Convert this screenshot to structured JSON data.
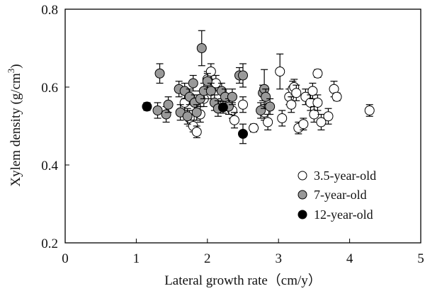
{
  "chart_data": {
    "type": "scatter",
    "title": "",
    "xlabel": "Lateral growth rate（cm/y）",
    "ylabel": "Xylem density (g/cm",
    "ylabel_superscript": "3",
    "ylabel_suffix": ")",
    "xlim": [
      0,
      5
    ],
    "ylim": [
      0.2,
      0.8
    ],
    "x_ticks": [
      0,
      1,
      2,
      3,
      4,
      5
    ],
    "y_ticks": [
      0.2,
      0.4,
      0.6,
      0.8
    ],
    "x_tick_labels": [
      "0",
      "1",
      "2",
      "3",
      "4",
      "5"
    ],
    "y_tick_labels": [
      "0.2",
      "0.4",
      "0.6",
      "0.8"
    ],
    "grid": false,
    "legend_position": "bottom-right",
    "series": [
      {
        "name": "3.5-year-old",
        "color": "#ffffff",
        "points": [
          {
            "x": 1.68,
            "y": 0.56,
            "err": 0.02
          },
          {
            "x": 1.75,
            "y": 0.52,
            "err": 0.02
          },
          {
            "x": 1.8,
            "y": 0.5,
            "err": 0.015
          },
          {
            "x": 1.85,
            "y": 0.485,
            "err": 0.015
          },
          {
            "x": 1.9,
            "y": 0.53,
            "err": 0.02
          },
          {
            "x": 1.95,
            "y": 0.57,
            "err": 0.02
          },
          {
            "x": 2.0,
            "y": 0.62,
            "err": 0.02
          },
          {
            "x": 2.05,
            "y": 0.64,
            "err": 0.02
          },
          {
            "x": 2.12,
            "y": 0.61,
            "err": 0.02
          },
          {
            "x": 2.25,
            "y": 0.56,
            "err": 0.02
          },
          {
            "x": 2.35,
            "y": 0.54,
            "err": 0.02
          },
          {
            "x": 2.38,
            "y": 0.515,
            "err": 0.02
          },
          {
            "x": 2.5,
            "y": 0.555,
            "err": 0.02
          },
          {
            "x": 2.65,
            "y": 0.495,
            "err": 0.01
          },
          {
            "x": 2.8,
            "y": 0.535,
            "err": 0.02
          },
          {
            "x": 2.85,
            "y": 0.51,
            "err": 0.02
          },
          {
            "x": 3.02,
            "y": 0.64,
            "err": 0.045
          },
          {
            "x": 3.05,
            "y": 0.52,
            "err": 0.02
          },
          {
            "x": 3.15,
            "y": 0.575,
            "err": 0.02
          },
          {
            "x": 3.18,
            "y": 0.555,
            "err": 0.02
          },
          {
            "x": 3.2,
            "y": 0.595,
            "err": 0.02
          },
          {
            "x": 3.22,
            "y": 0.6,
            "err": 0.02
          },
          {
            "x": 3.25,
            "y": 0.585,
            "err": 0.02
          },
          {
            "x": 3.28,
            "y": 0.495,
            "err": 0.015
          },
          {
            "x": 3.35,
            "y": 0.505,
            "err": 0.015
          },
          {
            "x": 3.38,
            "y": 0.575,
            "err": 0.02
          },
          {
            "x": 3.45,
            "y": 0.56,
            "err": 0.02
          },
          {
            "x": 3.48,
            "y": 0.59,
            "err": 0.02
          },
          {
            "x": 3.5,
            "y": 0.53,
            "err": 0.02
          },
          {
            "x": 3.55,
            "y": 0.635,
            "err": 0.01
          },
          {
            "x": 3.55,
            "y": 0.56,
            "err": 0.02
          },
          {
            "x": 3.6,
            "y": 0.51,
            "err": 0.02
          },
          {
            "x": 3.7,
            "y": 0.525,
            "err": 0.02
          },
          {
            "x": 3.78,
            "y": 0.595,
            "err": 0.02
          },
          {
            "x": 3.82,
            "y": 0.575,
            "err": 0.01
          },
          {
            "x": 4.28,
            "y": 0.54,
            "err": 0.015
          }
        ]
      },
      {
        "name": "7-year-old",
        "color": "#999999",
        "points": [
          {
            "x": 1.3,
            "y": 0.54,
            "err": 0.02
          },
          {
            "x": 1.33,
            "y": 0.635,
            "err": 0.025
          },
          {
            "x": 1.42,
            "y": 0.53,
            "err": 0.02
          },
          {
            "x": 1.45,
            "y": 0.555,
            "err": 0.02
          },
          {
            "x": 1.6,
            "y": 0.595,
            "err": 0.02
          },
          {
            "x": 1.62,
            "y": 0.535,
            "err": 0.02
          },
          {
            "x": 1.68,
            "y": 0.59,
            "err": 0.02
          },
          {
            "x": 1.72,
            "y": 0.525,
            "err": 0.02
          },
          {
            "x": 1.75,
            "y": 0.575,
            "err": 0.02
          },
          {
            "x": 1.8,
            "y": 0.61,
            "err": 0.02
          },
          {
            "x": 1.82,
            "y": 0.56,
            "err": 0.02
          },
          {
            "x": 1.85,
            "y": 0.535,
            "err": 0.02
          },
          {
            "x": 1.9,
            "y": 0.57,
            "err": 0.02
          },
          {
            "x": 1.92,
            "y": 0.7,
            "err": 0.045
          },
          {
            "x": 1.95,
            "y": 0.59,
            "err": 0.02
          },
          {
            "x": 2.0,
            "y": 0.615,
            "err": 0.02
          },
          {
            "x": 2.05,
            "y": 0.59,
            "err": 0.02
          },
          {
            "x": 2.1,
            "y": 0.56,
            "err": 0.02
          },
          {
            "x": 2.15,
            "y": 0.545,
            "err": 0.02
          },
          {
            "x": 2.2,
            "y": 0.59,
            "err": 0.02
          },
          {
            "x": 2.25,
            "y": 0.575,
            "err": 0.02
          },
          {
            "x": 2.3,
            "y": 0.55,
            "err": 0.02
          },
          {
            "x": 2.35,
            "y": 0.575,
            "err": 0.02
          },
          {
            "x": 2.45,
            "y": 0.63,
            "err": 0.02
          },
          {
            "x": 2.5,
            "y": 0.63,
            "err": 0.03
          },
          {
            "x": 2.75,
            "y": 0.54,
            "err": 0.02
          },
          {
            "x": 2.78,
            "y": 0.585,
            "err": 0.02
          },
          {
            "x": 2.8,
            "y": 0.595,
            "err": 0.05
          },
          {
            "x": 2.82,
            "y": 0.575,
            "err": 0.02
          },
          {
            "x": 2.88,
            "y": 0.55,
            "err": 0.02
          }
        ]
      },
      {
        "name": "12-year-old",
        "color": "#000000",
        "points": [
          {
            "x": 1.15,
            "y": 0.55,
            "err": 0.01
          },
          {
            "x": 2.22,
            "y": 0.548,
            "err": 0.015
          },
          {
            "x": 2.5,
            "y": 0.48,
            "err": 0.025
          }
        ]
      }
    ]
  }
}
